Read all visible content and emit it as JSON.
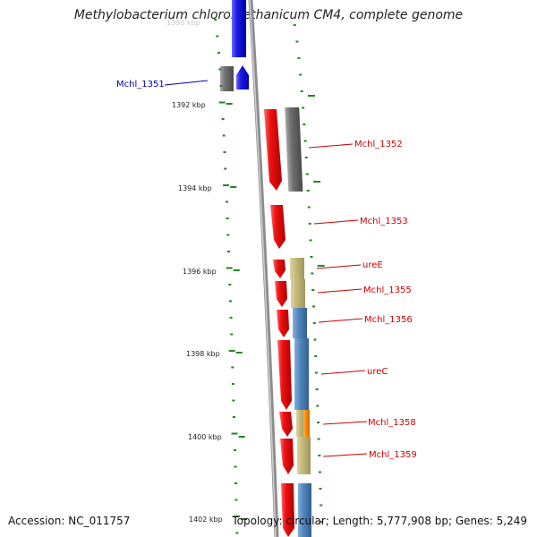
{
  "title": "Methylobacterium chloromethanicum CM4, complete genome",
  "faded_tick_label": "1390 kbp",
  "accession": "Accession: NC_011757",
  "stats": "Topology: circular; Length: 5,777,908 bp; Genes: 5,249",
  "colors": {
    "forward": "#ee1111",
    "reverse": "#1a1ae6",
    "grey": "#707070",
    "khaki": "#c4b97a",
    "steelblue": "#4f86bd",
    "orange": "#ff8c00",
    "tick": "#1e8a1e",
    "backbone": "#8c8c8c",
    "label_red": "#cc0000",
    "label_blue": "#0000aa"
  },
  "ticks": [
    "1392 kbp",
    "1394 kbp",
    "1396 kbp",
    "1398 kbp",
    "1400 kbp",
    "1402 kbp"
  ],
  "labels": [
    {
      "id": "mchl1351",
      "text": "Mchl_1351",
      "color": "blue"
    },
    {
      "id": "mchl1352",
      "text": "Mchl_1352",
      "color": "red"
    },
    {
      "id": "mchl1353",
      "text": "Mchl_1353",
      "color": "red"
    },
    {
      "id": "uree",
      "text": "ureE",
      "color": "red"
    },
    {
      "id": "mchl1355",
      "text": "Mchl_1355",
      "color": "red"
    },
    {
      "id": "mchl1356",
      "text": "Mchl_1356",
      "color": "red"
    },
    {
      "id": "urec",
      "text": "ureC",
      "color": "red"
    },
    {
      "id": "mchl1358",
      "text": "Mchl_1358",
      "color": "red"
    },
    {
      "id": "mchl1359",
      "text": "Mchl_1359",
      "color": "red"
    }
  ]
}
